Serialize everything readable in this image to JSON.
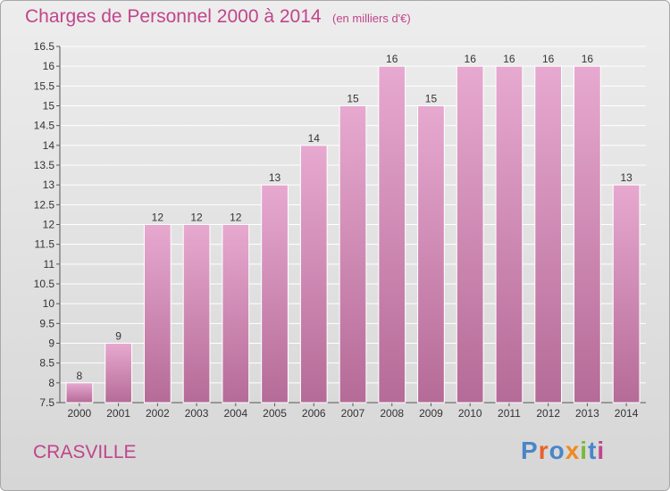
{
  "header": {
    "title": "Charges de Personnel 2000 à 2014",
    "subtitle": "(en milliers d'€)"
  },
  "footer": {
    "commune": "CRASVILLE",
    "logo_text": "Proxiti",
    "logo_colors": [
      "#4a86c8",
      "#e8612c",
      "#4a86c8",
      "#ef8a1f",
      "#7bb83a",
      "#4a86c8",
      "#c0458a"
    ]
  },
  "colors": {
    "title": "#c0458a",
    "bar_top": "#e7a9d0",
    "bar_bottom": "#b56b97"
  },
  "chart_data": {
    "type": "bar",
    "title": "Charges de Personnel 2000 à 2014",
    "subtitle": "(en milliers d'€)",
    "categories": [
      "2000",
      "2001",
      "2002",
      "2003",
      "2004",
      "2005",
      "2006",
      "2007",
      "2008",
      "2009",
      "2010",
      "2011",
      "2012",
      "2013",
      "2014"
    ],
    "values": [
      8,
      9,
      12,
      12,
      12,
      13,
      14,
      15,
      16,
      15,
      16,
      16,
      16,
      16,
      13
    ],
    "ylim": [
      7.5,
      16.5
    ],
    "yticks": [
      "7.5",
      "8",
      "8.5",
      "9",
      "9.5",
      "10",
      "10.5",
      "11",
      "11.5",
      "12",
      "12.5",
      "13",
      "13.5",
      "14",
      "14.5",
      "15",
      "15.5",
      "16",
      "16.5"
    ],
    "grid": true,
    "data_labels": true
  }
}
